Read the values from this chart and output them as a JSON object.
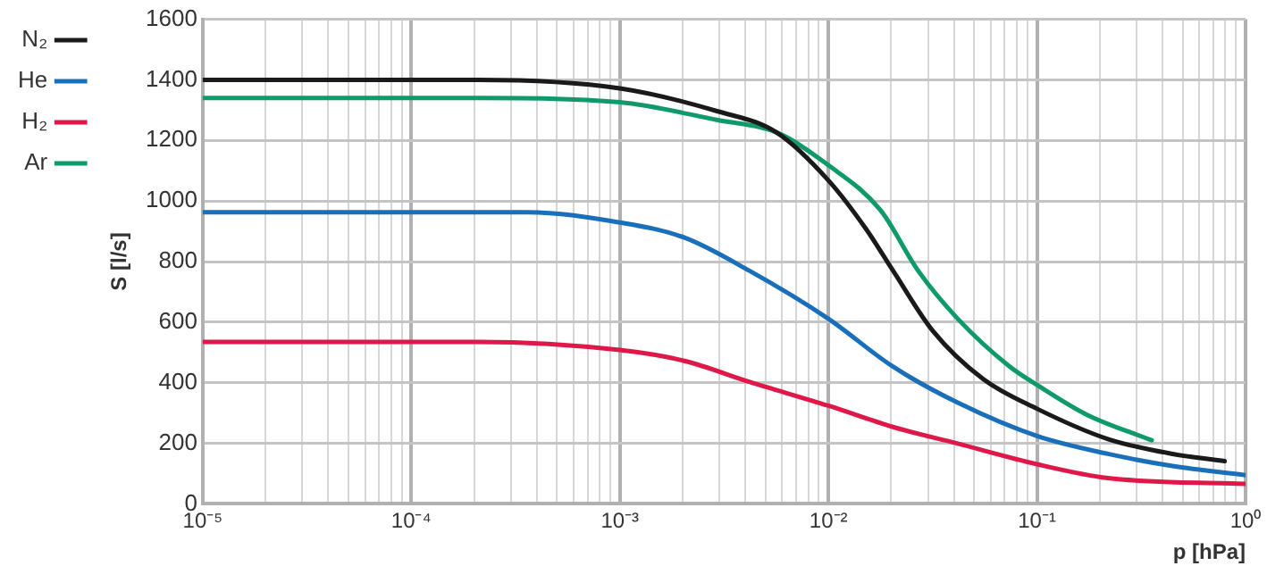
{
  "chart_data": {
    "type": "line",
    "xlabel": "p [hPa]",
    "ylabel": "S [l/s]",
    "log": "x",
    "xlim": [
      1e-05,
      1
    ],
    "ylim": [
      0,
      1600
    ],
    "xticks": [
      {
        "value": 1e-05,
        "label": "10⁻⁵"
      },
      {
        "value": 2e-05,
        "label": null
      },
      {
        "value": 3e-05,
        "label": null
      },
      {
        "value": 4e-05,
        "label": null
      },
      {
        "value": 5e-05,
        "label": null
      },
      {
        "value": 6e-05,
        "label": null
      },
      {
        "value": 7e-05,
        "label": null
      },
      {
        "value": 8e-05,
        "label": null
      },
      {
        "value": 9e-05,
        "label": null
      },
      {
        "value": 0.0001,
        "label": "10⁻⁴"
      },
      {
        "value": 0.0002,
        "label": null
      },
      {
        "value": 0.0003,
        "label": null
      },
      {
        "value": 0.0004,
        "label": null
      },
      {
        "value": 0.0005,
        "label": null
      },
      {
        "value": 0.0006,
        "label": null
      },
      {
        "value": 0.0007,
        "label": null
      },
      {
        "value": 0.0008,
        "label": null
      },
      {
        "value": 0.0009,
        "label": null
      },
      {
        "value": 0.001,
        "label": "10⁻³"
      },
      {
        "value": 0.002,
        "label": null
      },
      {
        "value": 0.003,
        "label": null
      },
      {
        "value": 0.004,
        "label": null
      },
      {
        "value": 0.005,
        "label": null
      },
      {
        "value": 0.006,
        "label": null
      },
      {
        "value": 0.007,
        "label": null
      },
      {
        "value": 0.008,
        "label": null
      },
      {
        "value": 0.009,
        "label": null
      },
      {
        "value": 0.01,
        "label": "10⁻²"
      },
      {
        "value": 0.02,
        "label": null
      },
      {
        "value": 0.03,
        "label": null
      },
      {
        "value": 0.04,
        "label": null
      },
      {
        "value": 0.05,
        "label": null
      },
      {
        "value": 0.06,
        "label": null
      },
      {
        "value": 0.07,
        "label": null
      },
      {
        "value": 0.08,
        "label": null
      },
      {
        "value": 0.09,
        "label": null
      },
      {
        "value": 0.1,
        "label": "10⁻¹"
      },
      {
        "value": 0.2,
        "label": null
      },
      {
        "value": 0.3,
        "label": null
      },
      {
        "value": 0.4,
        "label": null
      },
      {
        "value": 0.5,
        "label": null
      },
      {
        "value": 0.6,
        "label": null
      },
      {
        "value": 0.7,
        "label": null
      },
      {
        "value": 0.8,
        "label": null
      },
      {
        "value": 0.9,
        "label": null
      },
      {
        "value": 1,
        "label": "10⁰"
      }
    ],
    "yticks": [
      0,
      200,
      400,
      600,
      800,
      1000,
      1200,
      1400,
      1600
    ],
    "grid": true,
    "legend": "left",
    "marker": "none",
    "line_style": "solid",
    "series": [
      {
        "name": "N₂",
        "color": "#1a1a1a",
        "x": [
          1e-05,
          0.00021,
          0.001,
          0.00295,
          0.00562,
          0.01,
          0.0151,
          0.0204,
          0.0316,
          0.055,
          0.1,
          0.219,
          0.447,
          0.794
        ],
        "values": [
          1400,
          1400,
          1372,
          1296,
          1227,
          1068,
          909,
          770,
          572,
          413,
          314,
          214,
          165,
          141
        ]
      },
      {
        "name": "He",
        "color": "#1a6fba",
        "x": [
          1e-05,
          0.00036,
          0.001,
          0.00204,
          0.00417,
          0.01,
          0.0204,
          0.0417,
          0.1,
          0.219,
          0.447,
          1
        ],
        "values": [
          963,
          963,
          929,
          879,
          770,
          611,
          453,
          334,
          224,
          165,
          125,
          95
        ]
      },
      {
        "name": "H₂",
        "color": "#e0184a",
        "x": [
          1e-05,
          0.00021,
          0.001,
          0.00204,
          0.00417,
          0.01,
          0.0204,
          0.0417,
          0.1,
          0.219,
          1
        ],
        "values": [
          535,
          535,
          508,
          472,
          403,
          324,
          254,
          199,
          131,
          85,
          66
        ]
      },
      {
        "name": "Ar",
        "color": "#109a6a",
        "x": [
          1e-05,
          0.00021,
          0.001,
          0.00295,
          0.00562,
          0.01,
          0.0178,
          0.0269,
          0.0417,
          0.0741,
          0.1,
          0.174,
          0.355
        ],
        "values": [
          1340,
          1340,
          1326,
          1267,
          1227,
          1118,
          969,
          770,
          611,
          453,
          393,
          294,
          210
        ]
      }
    ]
  }
}
